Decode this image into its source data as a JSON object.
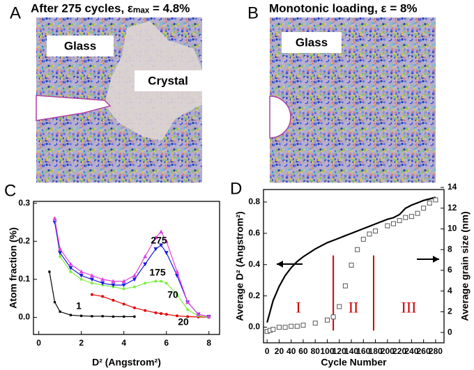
{
  "images": [
    {
      "panel": "A",
      "title": "After 275 cycles, εₘₐₓ = 4.8%",
      "labels": [
        "Glass",
        "Crystal"
      ]
    },
    {
      "panel": "B",
      "title": "Monotonic loading, ε = 8%",
      "labels": [
        "Glass"
      ]
    }
  ],
  "chart_data": [
    {
      "panel": "C",
      "type": "line",
      "xlabel": "D² (Angstrom²)",
      "ylabel": "Atom fraction (%)",
      "x": [
        0.5,
        0.75,
        1,
        1.5,
        2,
        2.5,
        3,
        3.5,
        4,
        4.5,
        5,
        5.5,
        5.75,
        6,
        6.5,
        7,
        7.5,
        8
      ],
      "xlim": [
        -0.25,
        8.5
      ],
      "ylim": [
        -0.045,
        0.305
      ],
      "xticks": [
        0,
        2,
        4,
        6,
        8
      ],
      "yticks": [
        {
          "value": 0,
          "label": "0.0"
        },
        0.1,
        0.2,
        0.3
      ],
      "series": [
        {
          "name": "1",
          "color": "#000000",
          "marker": "square",
          "values": [
            0.12,
            0.04,
            0.015,
            0.006,
            0.004,
            0.003,
            0.003,
            0.002,
            0.002,
            0.002,
            null,
            null,
            null,
            null,
            null,
            null,
            null,
            null
          ]
        },
        {
          "name": "20",
          "color": "#e00000",
          "marker": "circle",
          "values": [
            null,
            null,
            null,
            null,
            null,
            0.06,
            0.055,
            0.045,
            0.035,
            0.025,
            0.018,
            0.012,
            0.01,
            0.008,
            0.004,
            0.002,
            0.001,
            0
          ]
        },
        {
          "name": "70",
          "color": "#7cf040",
          "marker": "circle",
          "values": [
            null,
            0.26,
            0.16,
            0.12,
            0.1,
            0.09,
            0.085,
            0.08,
            0.075,
            0.08,
            0.09,
            0.095,
            0.095,
            0.09,
            0.06,
            0.02,
            0.004,
            0
          ]
        },
        {
          "name": "175",
          "color": "#1818e0",
          "marker": "triangle-down",
          "values": [
            null,
            0.25,
            0.17,
            0.13,
            0.11,
            0.1,
            0.09,
            0.085,
            0.085,
            0.1,
            0.14,
            0.18,
            0.19,
            0.17,
            0.11,
            0.04,
            0.008,
            0.002
          ]
        },
        {
          "name": "275",
          "color": "#e040e0",
          "marker": "triangle",
          "values": [
            null,
            0.26,
            0.18,
            0.14,
            0.12,
            0.11,
            0.1,
            0.095,
            0.095,
            0.11,
            0.16,
            0.21,
            0.225,
            0.2,
            0.12,
            0.04,
            0.008,
            0.002
          ]
        }
      ]
    },
    {
      "panel": "D",
      "type": "line",
      "xlabel": "Cycle Number",
      "ylabel": "Average D² (Angstrom²)",
      "y2label": "Average grain size (nm)",
      "x": [
        0,
        5,
        10,
        20,
        30,
        40,
        50,
        60,
        80,
        100,
        110,
        120,
        130,
        140,
        150,
        160,
        170,
        180,
        200,
        210,
        220,
        230,
        240,
        250,
        260,
        270,
        280
      ],
      "xlim": [
        -6,
        294
      ],
      "ylim": [
        -0.1,
        0.88
      ],
      "y2lim": [
        -1,
        13.8
      ],
      "xticks": [
        0,
        20,
        40,
        60,
        80,
        100,
        120,
        140,
        160,
        180,
        200,
        220,
        240,
        260,
        280
      ],
      "yticks": [
        {
          "value": 0,
          "label": "0.0"
        },
        0.2,
        0.4,
        0.6,
        0.8
      ],
      "y2ticks": [
        0,
        2,
        4,
        6,
        8,
        10,
        12,
        14
      ],
      "series": [
        {
          "color": "#000000",
          "values": [
            0.03,
            0.1,
            0.17,
            0.26,
            0.33,
            0.38,
            0.42,
            0.45,
            0.5,
            0.54,
            0.555,
            0.57,
            0.585,
            0.6,
            0.615,
            0.63,
            0.645,
            0.66,
            0.69,
            0.7,
            0.72,
            0.76,
            0.78,
            0.795,
            0.81,
            0.82,
            0.83
          ]
        },
        {
          "color": "#555555",
          "marker": "square-open",
          "line": false,
          "axis": "y2",
          "values": [
            0.1,
            0.2,
            0.3,
            0.5,
            0.5,
            0.6,
            0.6,
            0.7,
            0.9,
            1.2,
            1.5,
            2.5,
            4.5,
            6.5,
            8,
            9,
            9.5,
            9.8,
            10.3,
            10.5,
            10.8,
            11.1,
            11.2,
            11.5,
            12,
            12.5,
            12.8
          ]
        }
      ],
      "vlines": [
        110,
        177
      ],
      "vline_color": "#cc0000",
      "regions": [
        "I",
        "II",
        "III"
      ]
    }
  ]
}
